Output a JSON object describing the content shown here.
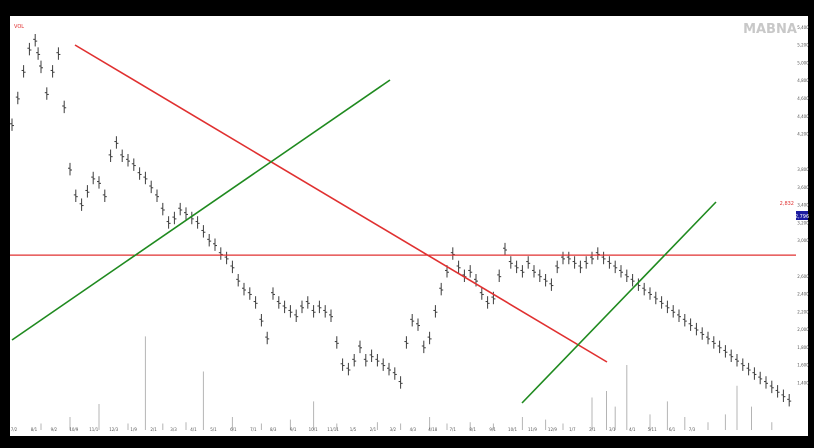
{
  "watermark": "MABNA",
  "small_label": "VOL",
  "level_label": "2,832",
  "last_price_badge": "2,796",
  "colors": {
    "background": "#ffffff",
    "frame": "#000000",
    "bars": "#3c3c3c",
    "volume": "#b4b4b4",
    "trendline_red": "#e03030",
    "trendline_green": "#1f8a1f",
    "level_line": "#e03030",
    "badge": "#1a1aa0"
  },
  "chart_data": {
    "type": "line",
    "title": "",
    "xlabel": "",
    "ylabel": "",
    "grid": false,
    "y_axis_side": "right",
    "ylim": [
      1000,
      5500
    ],
    "y_ticks": [
      {
        "value": 5400,
        "label": "5,400"
      },
      {
        "value": 5200,
        "label": "5,200"
      },
      {
        "value": 5000,
        "label": "5,000"
      },
      {
        "value": 4800,
        "label": "4,800"
      },
      {
        "value": 4600,
        "label": "4,600"
      },
      {
        "value": 4400,
        "label": "4,400"
      },
      {
        "value": 4200,
        "label": "4,200"
      },
      {
        "value": 3800,
        "label": "3,800"
      },
      {
        "value": 3600,
        "label": "3,600"
      },
      {
        "value": 3400,
        "label": "3,400"
      },
      {
        "value": 3200,
        "label": "3,200"
      },
      {
        "value": 3000,
        "label": "3,000"
      },
      {
        "value": 2600,
        "label": "2,600"
      },
      {
        "value": 2400,
        "label": "2,400"
      },
      {
        "value": 2200,
        "label": "2,200"
      },
      {
        "value": 2000,
        "label": "2,000"
      },
      {
        "value": 1800,
        "label": "1,800"
      },
      {
        "value": 1600,
        "label": "1,600"
      },
      {
        "value": 1400,
        "label": "1,400"
      }
    ],
    "x_labels": [
      "7/2",
      "8/1",
      "9/2",
      "10/9",
      "11/1",
      "12/3",
      "1/9",
      "2/1",
      "3/3",
      "4/1",
      "5/1",
      "6/1",
      "7/1",
      "8/3",
      "9/1",
      "10/1",
      "11/11",
      "1/5",
      "2/1",
      "3/2",
      "4/3",
      "4/18",
      "7/1",
      "8/1",
      "9/1",
      "10/1",
      "11/9",
      "12/9",
      "1/7",
      "2/1",
      "3/1",
      "4/1",
      "5/11",
      "6/1",
      "7/3"
    ],
    "price_series": {
      "x": [
        0,
        2,
        4,
        6,
        8,
        9,
        10,
        12,
        14,
        16,
        18,
        20,
        22,
        24,
        26,
        28,
        30,
        32,
        34,
        36,
        38,
        40,
        42,
        44,
        46,
        48,
        50,
        52,
        54,
        56,
        58,
        60,
        62,
        64,
        66,
        68,
        70,
        72,
        74,
        76,
        78,
        80,
        82,
        84,
        86,
        88,
        90,
        92,
        94,
        96,
        98,
        100,
        102,
        104,
        106,
        108,
        110,
        112,
        114,
        116,
        118,
        120,
        122,
        124,
        126,
        128,
        130,
        132,
        134,
        136,
        138,
        140,
        142,
        144,
        146,
        148,
        150,
        152,
        154,
        156,
        158,
        160,
        162,
        164,
        166,
        168,
        170,
        172,
        174,
        176,
        178,
        180,
        182,
        184,
        186,
        188,
        190,
        192,
        194,
        196,
        198,
        200,
        202,
        204,
        206,
        208,
        210,
        212,
        214,
        216,
        218,
        220,
        222,
        224,
        226,
        228,
        230,
        232,
        234,
        236,
        238,
        240,
        242,
        244,
        246,
        248,
        250,
        252,
        254,
        256,
        258,
        260,
        262,
        264,
        266,
        268
      ],
      "y": [
        4300,
        4600,
        4900,
        5150,
        5250,
        5100,
        4950,
        4650,
        4900,
        5100,
        4500,
        3800,
        3500,
        3400,
        3550,
        3700,
        3650,
        3500,
        3950,
        4100,
        3950,
        3900,
        3850,
        3750,
        3700,
        3600,
        3500,
        3350,
        3200,
        3250,
        3350,
        3300,
        3250,
        3200,
        3100,
        3000,
        2950,
        2850,
        2800,
        2700,
        2550,
        2450,
        2400,
        2300,
        2100,
        1900,
        2400,
        2300,
        2250,
        2200,
        2150,
        2250,
        2300,
        2200,
        2250,
        2200,
        2150,
        1850,
        1600,
        1550,
        1650,
        1800,
        1650,
        1700,
        1650,
        1600,
        1550,
        1500,
        1400,
        1850,
        2100,
        2050,
        1800,
        1900,
        2200,
        2450,
        2650,
        2850,
        2700,
        2600,
        2650,
        2550,
        2400,
        2300,
        2350,
        2600,
        2900,
        2750,
        2700,
        2650,
        2750,
        2650,
        2600,
        2550,
        2500,
        2700,
        2800,
        2800,
        2750,
        2700,
        2750,
        2800,
        2850,
        2800,
        2750,
        2700,
        2650,
        2600,
        2550,
        2500,
        2450,
        2400,
        2350,
        2300,
        2250,
        2200,
        2150,
        2100,
        2050,
        2000,
        1950,
        1900,
        1850,
        1800,
        1750,
        1700,
        1650,
        1600,
        1550,
        1500,
        1450,
        1400,
        1350,
        1300,
        1250,
        1200
      ]
    },
    "volume_series": {
      "x": [
        10,
        20,
        30,
        40,
        46,
        52,
        60,
        66,
        76,
        86,
        96,
        104,
        112,
        126,
        134,
        144,
        150,
        158,
        166,
        176,
        184,
        190,
        200,
        205,
        208,
        212,
        220,
        226,
        232,
        240,
        246,
        250,
        255,
        262
      ],
      "y": [
        0.05,
        0.1,
        0.2,
        0.05,
        0.72,
        0.05,
        0.06,
        0.45,
        0.1,
        0.05,
        0.08,
        0.22,
        0.05,
        0.06,
        0.05,
        0.1,
        0.05,
        0.06,
        0.05,
        0.1,
        0.08,
        0.05,
        0.25,
        0.3,
        0.18,
        0.5,
        0.12,
        0.22,
        0.1,
        0.06,
        0.12,
        0.34,
        0.18,
        0.06
      ]
    },
    "horizontal_level": 2832,
    "last_price": 2796
  }
}
